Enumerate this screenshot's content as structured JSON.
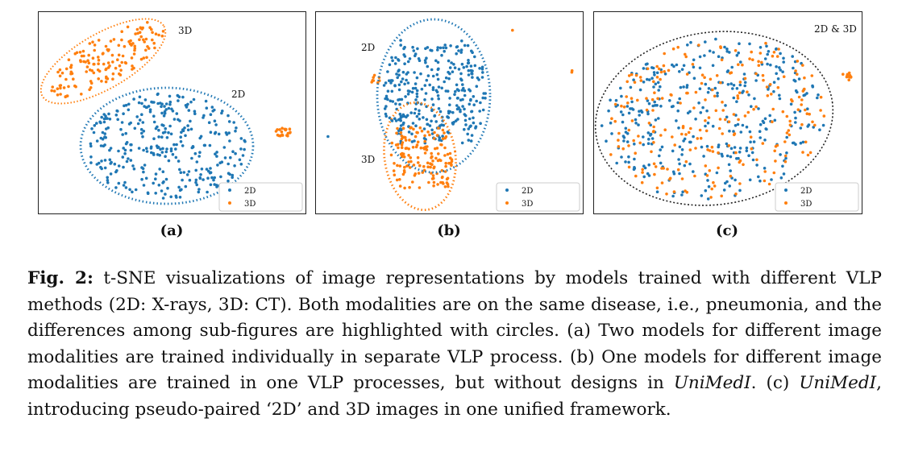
{
  "colors": {
    "2D": "#1f77b4",
    "3D": "#ff7f0e",
    "frame": "#222222"
  },
  "chart_data": [
    {
      "type": "scatter",
      "panel_label": "(a)",
      "series": [
        {
          "name": "2D"
        },
        {
          "name": "3D"
        }
      ],
      "annotations": [
        "2D",
        "3D"
      ],
      "grid": false,
      "legend": "bottom-right"
    },
    {
      "type": "scatter",
      "panel_label": "(b)",
      "series": [
        {
          "name": "2D"
        },
        {
          "name": "3D"
        }
      ],
      "annotations": [
        "2D",
        "3D"
      ],
      "grid": false,
      "legend": "bottom-right"
    },
    {
      "type": "scatter",
      "panel_label": "(c)",
      "series": [
        {
          "name": "2D"
        },
        {
          "name": "3D"
        }
      ],
      "annotations": [
        "2D & 3D"
      ],
      "grid": false,
      "legend": "bottom-right"
    }
  ],
  "caption": {
    "lead": "Fig. 2:",
    "part1": " t-SNE visualizations of image representations by models trained with different VLP methods (2D: X-rays, 3D: CT). Both modalities are on the same disease, i.e., pneumonia, and the differences among sub-figures are highlighted with circles. (a) Two models for different image modalities are trained individually in separate VLP process. (b) One models for different image modalities are trained in one VLP processes, but without designs in ",
    "em1": "UniMedI",
    "part2": ". (c) ",
    "em2": "UniMedI",
    "part3": ", introducing pseudo-paired ‘2D’ and 3D images in one unified framework."
  }
}
